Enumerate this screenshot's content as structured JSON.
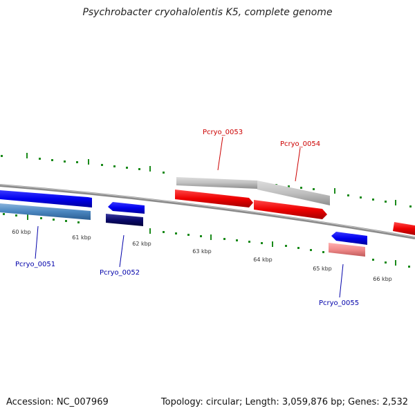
{
  "title": "Psychrobacter cryohalolentis K5, complete genome",
  "footer": {
    "accession": "Accession: NC_007969",
    "summary": "Topology: circular; Length: 3,059,876 bp; Genes: 2,532"
  },
  "colors": {
    "backbone": "#7a7a7a",
    "ticks": "#1a8a1a",
    "tick_label": "#333333",
    "plus_gene_label": "#cc0000",
    "minus_gene_label": "#0000aa"
  },
  "ticks": [
    {
      "label": "60 kbp"
    },
    {
      "label": "61 kbp"
    },
    {
      "label": "62 kbp"
    },
    {
      "label": "63 kbp"
    },
    {
      "label": "64 kbp"
    },
    {
      "label": "65 kbp"
    },
    {
      "label": "66 kbp"
    }
  ],
  "genes": [
    {
      "name": "Pcryo_0051",
      "strand": "minus"
    },
    {
      "name": "Pcryo_0052",
      "strand": "minus"
    },
    {
      "name": "Pcryo_0053",
      "strand": "plus"
    },
    {
      "name": "Pcryo_0054",
      "strand": "plus"
    },
    {
      "name": "Pcryo_0055",
      "strand": "minus"
    }
  ]
}
